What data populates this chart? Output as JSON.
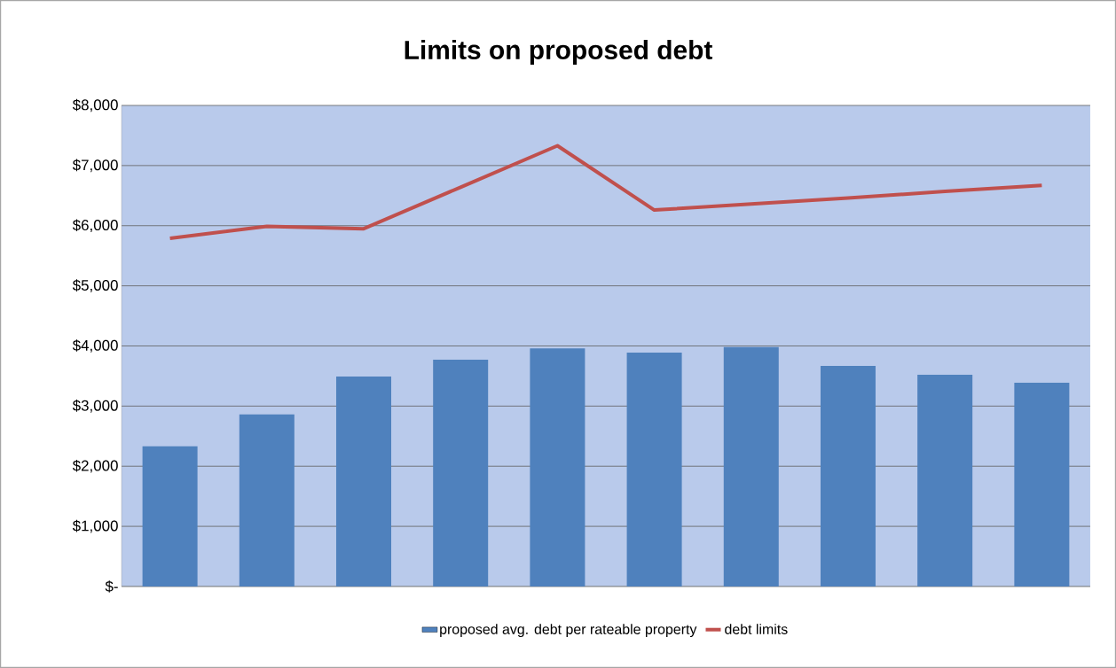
{
  "chart_data": {
    "type": "bar",
    "title": "Limits on proposed debt",
    "categories": [
      null,
      null,
      null,
      null,
      null,
      null,
      null,
      null,
      null,
      null
    ],
    "series": [
      {
        "name": "proposed avg. debt per rateable property",
        "color": "#4f81bd",
        "values": [
          2330,
          2860,
          3490,
          3770,
          3960,
          3890,
          3980,
          3670,
          3520,
          3390
        ]
      },
      {
        "name": "debt limits",
        "type": "line",
        "color": "#c0504d",
        "values": [
          5790,
          5990,
          5950,
          6640,
          7330,
          6260,
          6360,
          6460,
          6570,
          6670
        ]
      }
    ],
    "ylim": [
      0,
      8000
    ],
    "yticks": [
      {
        "value": 0,
        "label": "$-"
      },
      {
        "value": 1000,
        "label": "$1,000"
      },
      {
        "value": 2000,
        "label": "$2,000"
      },
      {
        "value": 3000,
        "label": "$3,000"
      },
      {
        "value": 4000,
        "label": "$4,000"
      },
      {
        "value": 5000,
        "label": "$5,000"
      },
      {
        "value": 6000,
        "label": "$6,000"
      },
      {
        "value": 7000,
        "label": "$7,000"
      },
      {
        "value": 8000,
        "label": "$8,000"
      }
    ],
    "grid": "y",
    "legend": "bottom",
    "marker": "none"
  }
}
